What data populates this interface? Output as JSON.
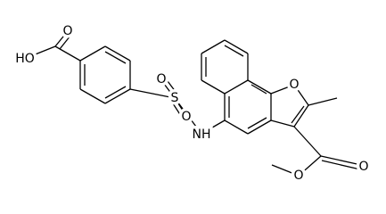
{
  "nodes": [
    {
      "label": "HO"
    },
    {
      "label": "O"
    },
    {
      "label": "O"
    },
    {
      "label": "S"
    },
    {
      "label": "O"
    },
    {
      "label": "NH"
    },
    {
      "label": "O"
    },
    {
      "label": "O"
    },
    {
      "label": "O"
    }
  ]
}
